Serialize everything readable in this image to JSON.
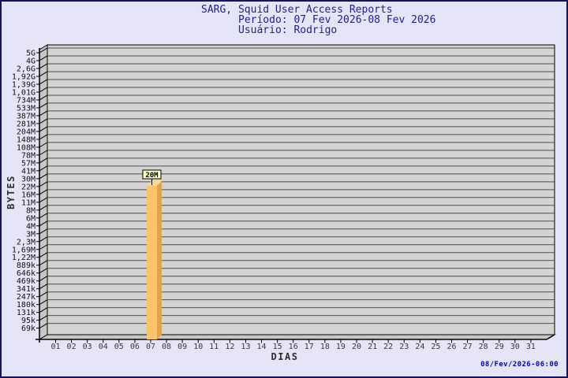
{
  "window": {
    "background": "#e5e5f7",
    "border_color": "#14145f"
  },
  "header": {
    "title": "SARG, Squid User Access Reports",
    "period": "Período: 07 Fev 2026-08 Fev 2026",
    "user": "Usuário: Rodrigo",
    "text_color": "#1f1f8f"
  },
  "chart_data": {
    "type": "bar",
    "title": "SARG, Squid User Access Reports",
    "subtitle": "Período: 07 Fev 2026-08 Fev 2026 / Usuário: Rodrigo",
    "xlabel": "DIAS",
    "ylabel": "BYTES",
    "y_scale": "log",
    "grid": "horizontal",
    "legend_position": "none",
    "categories": [
      "01",
      "02",
      "03",
      "04",
      "05",
      "06",
      "07",
      "08",
      "09",
      "10",
      "11",
      "12",
      "13",
      "14",
      "15",
      "16",
      "17",
      "18",
      "19",
      "20",
      "21",
      "22",
      "23",
      "24",
      "25",
      "26",
      "27",
      "28",
      "29",
      "30",
      "31"
    ],
    "y_tick_labels": [
      "5G",
      "4G",
      "2,6G",
      "1,92G",
      "1,39G",
      "1,01G",
      "734M",
      "533M",
      "387M",
      "281M",
      "204M",
      "148M",
      "108M",
      "78M",
      "57M",
      "41M",
      "30M",
      "22M",
      "16M",
      "11M",
      "8M",
      "6M",
      "4M",
      "3M",
      "2,3M",
      "1,69M",
      "1,22M",
      "889k",
      "646k",
      "469k",
      "341k",
      "247k",
      "180k",
      "131k",
      "95k",
      "69k"
    ],
    "ylim_labels": [
      "69k",
      "5G"
    ],
    "bars": [
      {
        "day": "07",
        "value_label": "20M"
      }
    ],
    "colors": {
      "plot_bg": "#d3d3d3",
      "wall_bg": "#c7c7c7",
      "grid_line": "#4f4f4f",
      "axis_line": "#000000",
      "bar_front": "#fcc46a",
      "bar_side": "#dfa44c",
      "bar_top": "#fed88e",
      "annotation_bg": "#ffffc8",
      "annotation_border": "#000000",
      "y_label_color": "#111111",
      "x_label_color": "#383838",
      "axis_title_color": "#2e2e2e"
    }
  },
  "footer": {
    "timestamp": "08/Fev/2026-06:00",
    "color": "#0000bb"
  }
}
